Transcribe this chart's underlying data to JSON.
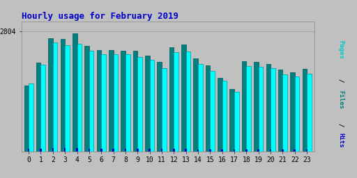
{
  "title": "Hourly usage for February 2019",
  "title_color": "#0000cc",
  "title_fontsize": 9,
  "background_color": "#c0c0c0",
  "plot_background": "#c0c0c0",
  "hours": [
    0,
    1,
    2,
    3,
    4,
    5,
    6,
    7,
    8,
    9,
    10,
    11,
    12,
    13,
    14,
    15,
    16,
    17,
    18,
    19,
    20,
    21,
    22,
    23
  ],
  "pages": [
    1580,
    2020,
    2540,
    2480,
    2510,
    2340,
    2270,
    2270,
    2260,
    2190,
    2140,
    1930,
    2310,
    2330,
    2040,
    1880,
    1640,
    1390,
    1990,
    1970,
    1940,
    1790,
    1740,
    1810
  ],
  "files": [
    1540,
    2060,
    2640,
    2620,
    2750,
    2460,
    2360,
    2360,
    2340,
    2340,
    2230,
    2090,
    2430,
    2490,
    2160,
    2010,
    1710,
    1460,
    2100,
    2080,
    2040,
    1900,
    1840,
    1920
  ],
  "hits": [
    55,
    60,
    75,
    75,
    75,
    65,
    60,
    60,
    60,
    58,
    58,
    65,
    58,
    58,
    48,
    48,
    38,
    38,
    48,
    48,
    48,
    42,
    42,
    48
  ],
  "ymax": 2804,
  "ytick_label": "2804",
  "pages_color": "#00ffff",
  "files_color": "#008080",
  "hits_color": "#0000cc",
  "grid_color": "#999999",
  "tick_fontsize": 7,
  "font_family": "monospace",
  "right_label_pages_color": "#00cccc",
  "right_label_files_color": "#008080",
  "right_label_hits_color": "#0000cc"
}
